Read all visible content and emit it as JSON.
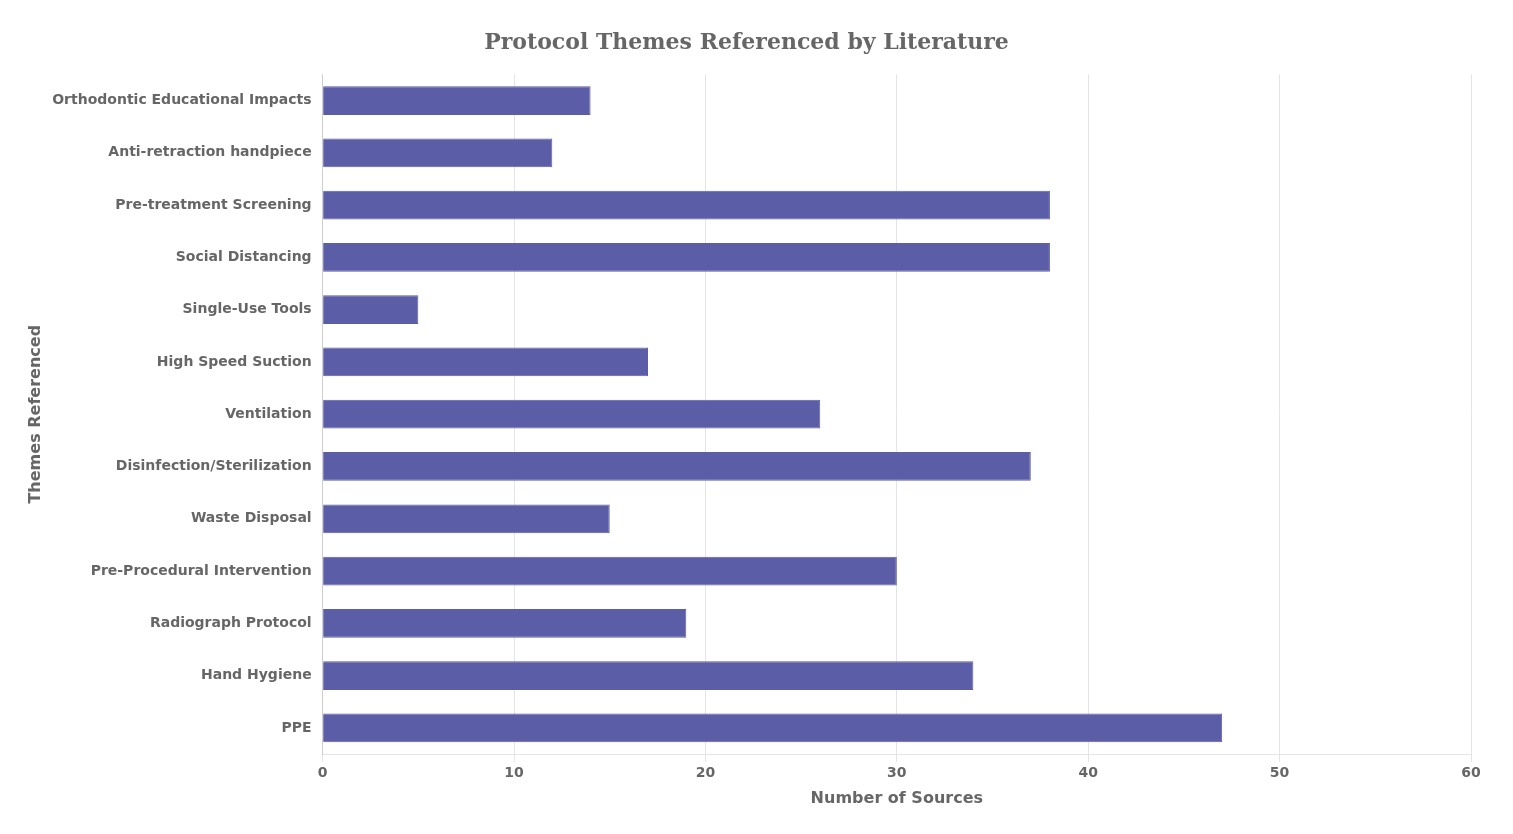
{
  "chart_data": {
    "type": "bar",
    "orientation": "horizontal",
    "title": "Protocol Themes Referenced by Literature",
    "xlabel": "Number of Sources",
    "ylabel": "Themes Referenced",
    "categories": [
      "PPE",
      "Hand Hygiene",
      "Radiograph Protocol",
      "Pre-Procedural Intervention",
      "Waste Disposal",
      "Disinfection/Sterilization",
      "Ventilation",
      "High Speed Suction",
      "Single-Use Tools",
      "Social Distancing",
      "Pre-treatment Screening",
      "Anti-retraction handpiece",
      "Orthodontic Educational Impacts"
    ],
    "values": [
      47,
      34,
      19,
      30,
      15,
      37,
      26,
      17,
      5,
      38,
      38,
      12,
      14
    ],
    "color": "#5B5EA6",
    "xlim": [
      0,
      60
    ],
    "xticks": [
      0,
      10,
      20,
      30,
      40,
      50,
      60
    ],
    "grid": true
  }
}
